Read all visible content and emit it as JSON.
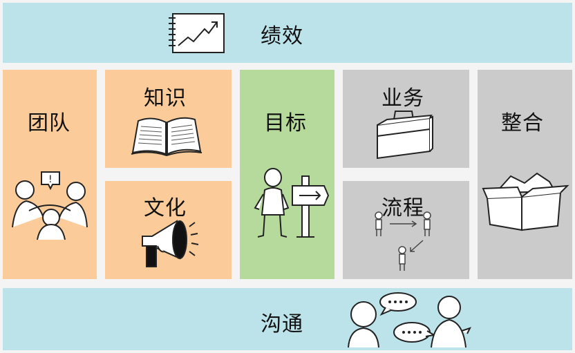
{
  "blocks": {
    "performance": {
      "label": "绩效",
      "icon": "chart-notepad-icon"
    },
    "team": {
      "label": "团队",
      "icon": "people-discussion-icon"
    },
    "knowledge": {
      "label": "知识",
      "icon": "open-book-icon"
    },
    "culture": {
      "label": "文化",
      "icon": "megaphone-icon"
    },
    "goal": {
      "label": "目标",
      "icon": "person-signpost-icon"
    },
    "business": {
      "label": "业务",
      "icon": "briefcase-icon"
    },
    "process": {
      "label": "流程",
      "icon": "process-flow-icon"
    },
    "integration": {
      "label": "整合",
      "icon": "box-icon"
    },
    "communication": {
      "label": "沟通",
      "icon": "speech-bubbles-icon"
    }
  },
  "colors": {
    "bar": "#bde3ea",
    "orange": "#fbcb9a",
    "green": "#b6d99c",
    "grey": "#cbcbcb"
  }
}
